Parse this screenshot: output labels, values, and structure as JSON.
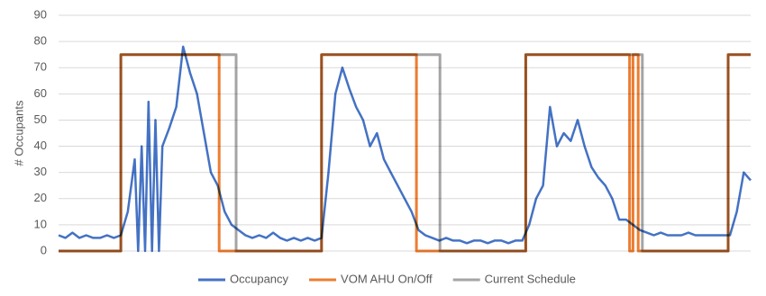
{
  "chart_data": {
    "type": "line",
    "y_label": "# Occupants",
    "ylim": [
      0,
      90
    ],
    "yticks": [
      0,
      10,
      20,
      30,
      40,
      50,
      60,
      70,
      80,
      90
    ],
    "xlim": [
      0,
      200
    ],
    "grid": true,
    "legend": "bottom",
    "series": [
      {
        "name": "Current Schedule",
        "color": "#a5a5a5",
        "width": 3,
        "x": [
          0,
          18,
          18,
          51.3,
          51.3,
          76,
          76,
          110.2,
          110.2,
          135,
          135,
          168.7,
          168.7,
          193.5,
          193.5,
          200
        ],
        "values": [
          0,
          0,
          75,
          75,
          0,
          0,
          75,
          75,
          0,
          0,
          75,
          75,
          0,
          0,
          75,
          75
        ]
      },
      {
        "name": "VOM AHU On/Off",
        "color": "#ed7d31",
        "width": 3,
        "x": [
          0,
          18,
          18,
          46.4,
          46.4,
          76,
          76,
          103.4,
          103.4,
          135,
          135,
          165,
          165,
          166,
          166,
          167.5,
          167.5,
          193.5,
          193.5,
          200
        ],
        "values": [
          0,
          0,
          75,
          75,
          0,
          0,
          75,
          75,
          0,
          0,
          75,
          75,
          0,
          0,
          75,
          75,
          0,
          0,
          75,
          75
        ]
      },
      {
        "name": "Occupancy",
        "color": "#4472c4",
        "width": 2.5,
        "x": [
          0,
          2,
          4,
          6,
          8,
          10,
          12,
          14,
          16,
          18,
          20,
          22,
          23,
          24,
          25,
          26,
          27,
          28,
          29,
          30,
          32,
          34,
          36,
          38,
          40,
          42,
          44,
          46,
          48,
          50,
          52,
          54,
          56,
          58,
          60,
          62,
          64,
          66,
          68,
          70,
          72,
          74,
          76,
          78,
          80,
          82,
          84,
          86,
          88,
          90,
          92,
          94,
          96,
          98,
          100,
          102,
          104,
          106,
          108,
          110,
          112,
          114,
          116,
          118,
          120,
          122,
          124,
          126,
          128,
          130,
          132,
          134,
          136,
          138,
          140,
          142,
          144,
          146,
          148,
          150,
          152,
          154,
          156,
          158,
          160,
          162,
          164,
          166,
          168,
          170,
          172,
          174,
          176,
          178,
          180,
          182,
          184,
          186,
          188,
          190,
          192,
          194,
          196,
          198,
          200
        ],
        "values": [
          6,
          5,
          7,
          5,
          6,
          5,
          5,
          6,
          5,
          6,
          15,
          35,
          0,
          40,
          0,
          57,
          0,
          50,
          0,
          40,
          47,
          55,
          78,
          68,
          60,
          45,
          30,
          25,
          15,
          10,
          8,
          6,
          5,
          6,
          5,
          7,
          5,
          4,
          5,
          4,
          5,
          4,
          5,
          30,
          60,
          70,
          62,
          55,
          50,
          40,
          45,
          35,
          30,
          25,
          20,
          15,
          8,
          6,
          5,
          4,
          5,
          4,
          4,
          3,
          4,
          4,
          3,
          4,
          4,
          3,
          4,
          4,
          10,
          20,
          25,
          55,
          40,
          45,
          42,
          50,
          40,
          32,
          28,
          25,
          20,
          12,
          12,
          10,
          8,
          7,
          6,
          7,
          6,
          6,
          6,
          7,
          6,
          6,
          6,
          6,
          6,
          6,
          15,
          30,
          27
        ]
      }
    ]
  }
}
